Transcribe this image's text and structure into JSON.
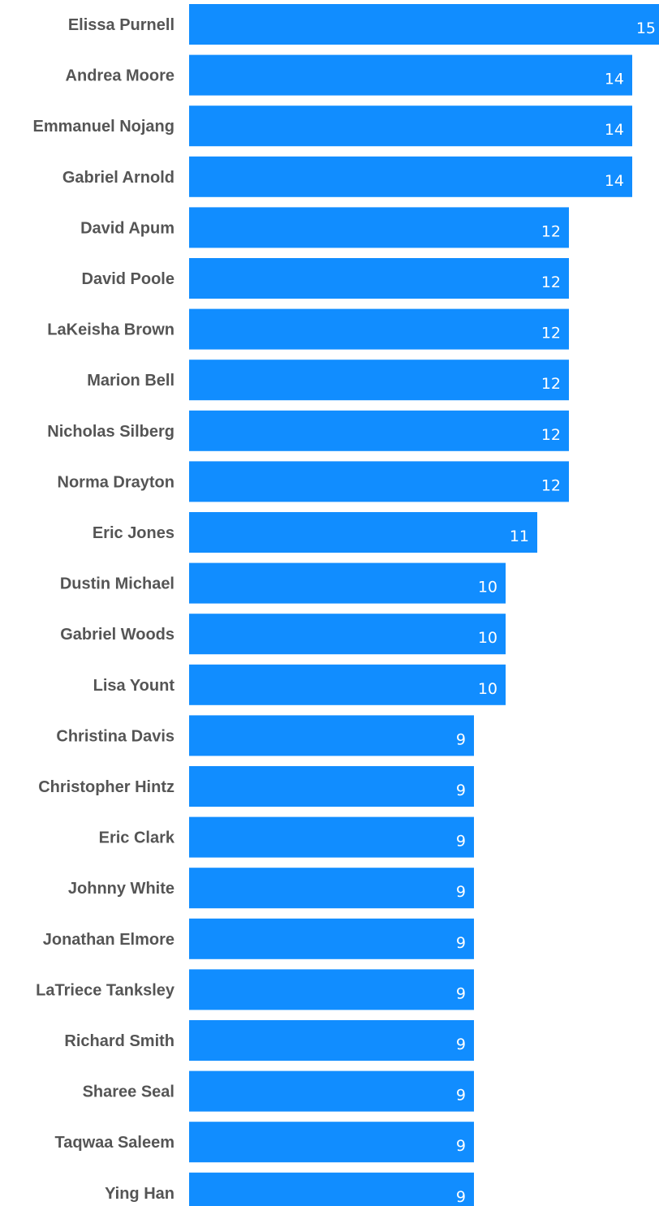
{
  "colors": {
    "bar": "#118DFF",
    "category_text": "#555555",
    "value_text": "#ffffff"
  },
  "chart_data": {
    "type": "bar",
    "orientation": "horizontal",
    "title": "",
    "xlabel": "",
    "ylabel": "",
    "xlim": [
      0,
      15
    ],
    "grid": false,
    "legend": "none",
    "categories": [
      "Elissa Purnell",
      "Andrea Moore",
      "Emmanuel Nojang",
      "Gabriel Arnold",
      "David Apum",
      "David Poole",
      "LaKeisha Brown",
      "Marion Bell",
      "Nicholas Silberg",
      "Norma Drayton",
      "Eric Jones",
      "Dustin Michael",
      "Gabriel Woods",
      "Lisa Yount",
      "Christina Davis",
      "Christopher Hintz",
      "Eric Clark",
      "Johnny White",
      "Jonathan Elmore",
      "LaTriece Tanksley",
      "Richard Smith",
      "Sharee Seal",
      "Taqwaa Saleem",
      "Ying Han"
    ],
    "values": [
      15,
      14,
      14,
      14,
      12,
      12,
      12,
      12,
      12,
      12,
      11,
      10,
      10,
      10,
      9,
      9,
      9,
      9,
      9,
      9,
      9,
      9,
      9,
      9
    ]
  }
}
